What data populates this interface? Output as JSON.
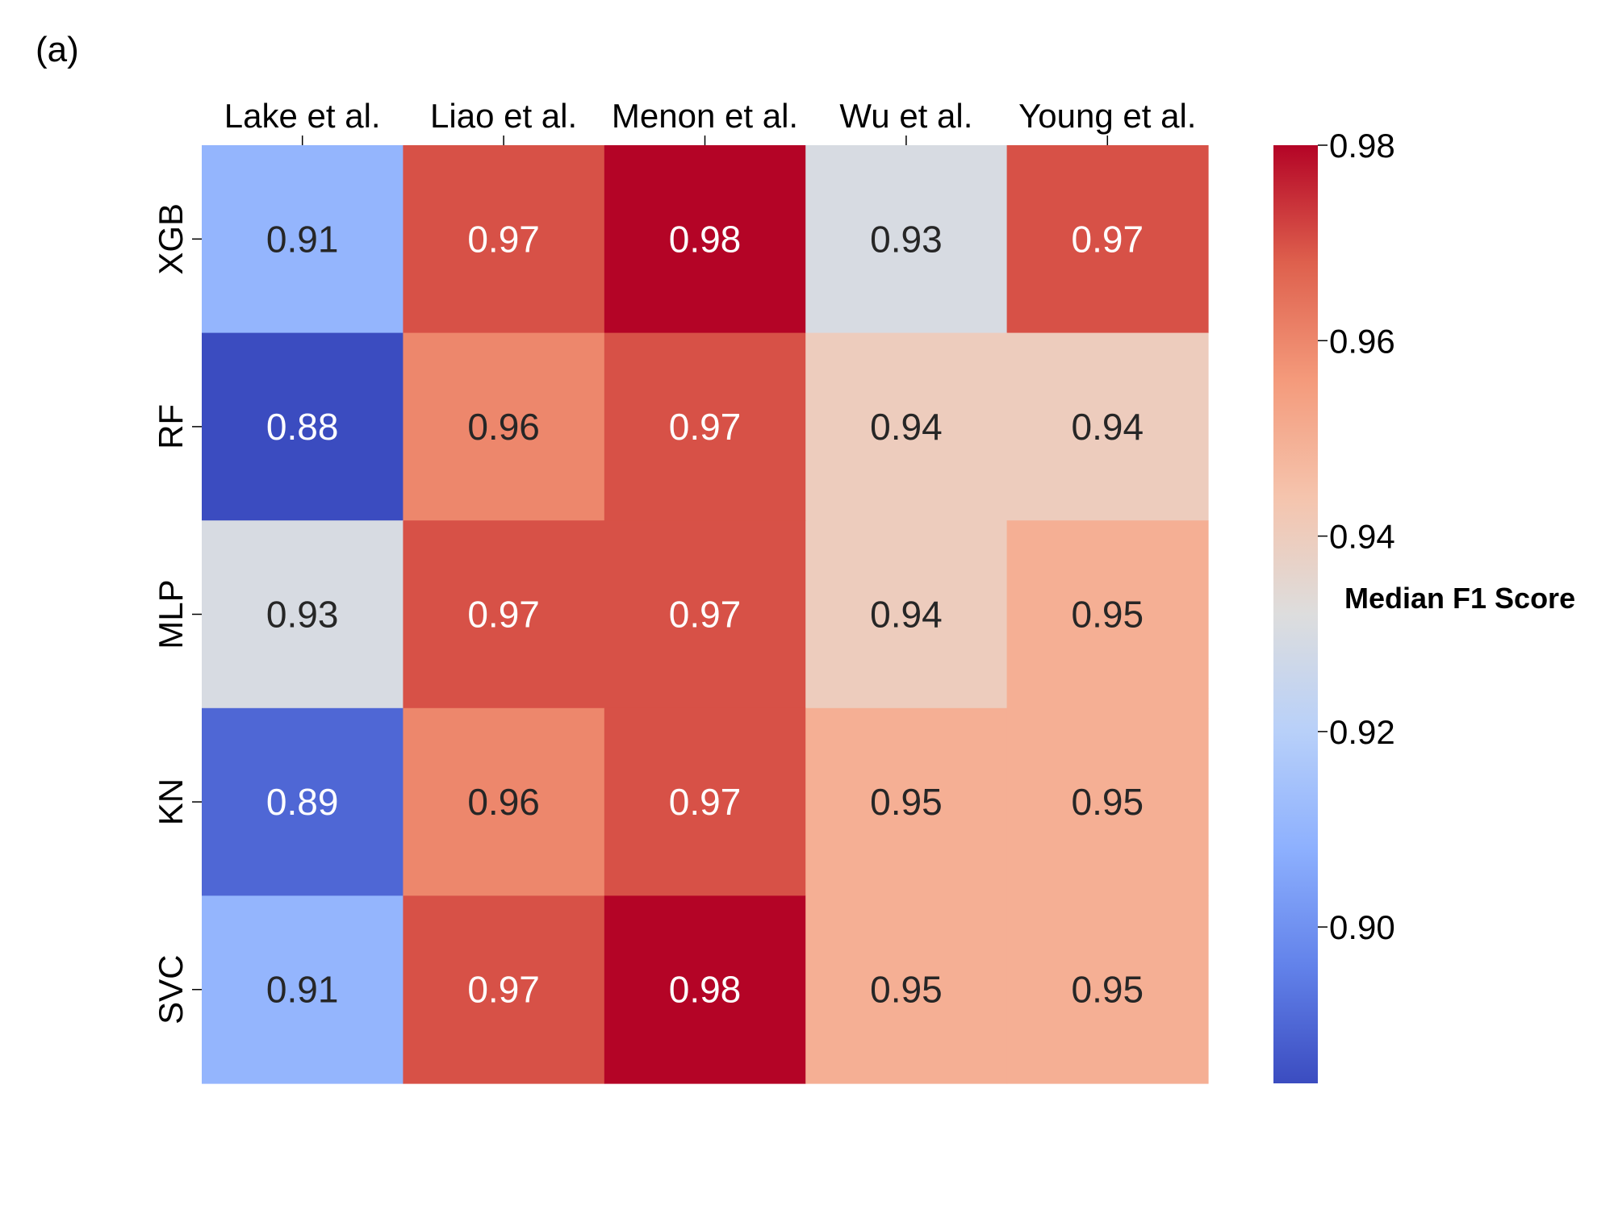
{
  "panel_label": "(a)",
  "chart_data": {
    "type": "heatmap",
    "x_categories": [
      "Lake et al.",
      "Liao et al.",
      "Menon et al.",
      "Wu et al.",
      "Young et al."
    ],
    "y_categories": [
      "XGB",
      "RF",
      "MLP",
      "KN",
      "SVC"
    ],
    "values": [
      [
        0.91,
        0.97,
        0.98,
        0.93,
        0.97
      ],
      [
        0.88,
        0.96,
        0.97,
        0.94,
        0.94
      ],
      [
        0.93,
        0.97,
        0.97,
        0.94,
        0.95
      ],
      [
        0.89,
        0.96,
        0.97,
        0.95,
        0.95
      ],
      [
        0.91,
        0.97,
        0.98,
        0.95,
        0.95
      ]
    ],
    "colormap": "coolwarm",
    "colorbar": {
      "label": "Median F1 Score",
      "range": [
        0.884,
        0.98
      ],
      "ticks": [
        0.9,
        0.92,
        0.94,
        0.96,
        0.98
      ],
      "tick_labels": [
        "0.90",
        "0.92",
        "0.94",
        "0.96",
        "0.98"
      ]
    },
    "x_tick_position": "top",
    "legend_placement": "right"
  }
}
